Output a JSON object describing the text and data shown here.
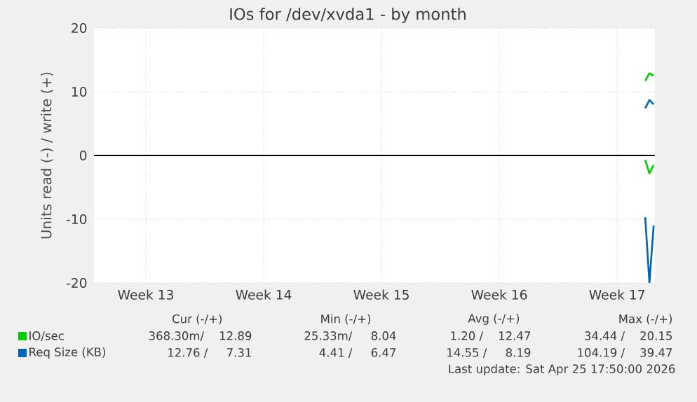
{
  "chart_data": {
    "type": "line",
    "title": "IOs for /dev/xvda1 - by month",
    "ylabel": "Units read (-) / write (+)",
    "xlim": [
      "2026-03-23T10:00",
      "2026-04-25T17:50"
    ],
    "xticks": [
      {
        "value": "2026-03-26T12:00",
        "label": "Week 13"
      },
      {
        "value": "2026-04-02T12:00",
        "label": "Week 14"
      },
      {
        "value": "2026-04-09T12:00",
        "label": "Week 15"
      },
      {
        "value": "2026-04-16T12:00",
        "label": "Week 16"
      },
      {
        "value": "2026-04-23T12:00",
        "label": "Week 17"
      }
    ],
    "ylim": [
      -20,
      20
    ],
    "yticks": [
      -20,
      -10,
      0,
      10,
      20
    ],
    "grid": true,
    "legend": "bottom left",
    "marker": "none",
    "line_style": "solid",
    "ref_lines": [
      {
        "axis": "y",
        "value": 0,
        "color": "#000000"
      }
    ],
    "series": [
      {
        "name": "IO/sec",
        "color": "#00cc00",
        "x": [
          "2026-04-25T04:00",
          "2026-04-25T10:00",
          "2026-04-25T16:00"
        ],
        "values": [
          11.7,
          12.9,
          12.5
        ]
      },
      {
        "color": "#00cc00",
        "x": [
          "2026-04-25T04:00",
          "2026-04-25T10:00",
          "2026-04-25T16:00"
        ],
        "values": [
          -0.7,
          -2.8,
          -1.5
        ]
      },
      {
        "name": "Req Size (KB)",
        "color": "#0066b3",
        "x": [
          "2026-04-25T04:00",
          "2026-04-25T10:00",
          "2026-04-25T16:00"
        ],
        "values": [
          7.4,
          8.7,
          8.0
        ]
      },
      {
        "color": "#0066b3",
        "x": [
          "2026-04-25T04:00",
          "2026-04-25T10:00",
          "2026-04-25T16:00"
        ],
        "values": [
          -9.7,
          -20,
          -11
        ]
      }
    ],
    "annotations": [
      "Cur (-/+)",
      "Min (-/+)",
      "Avg (-/+)",
      "Max (-/+)",
      "368.30m/    12.89",
      "25.33m/     8.04",
      "1.20 /    12.47",
      "34.44 /    20.15",
      "12.76 /     7.31",
      "4.41 /     6.47",
      "14.55 /     8.19",
      "104.19 /    39.47",
      "Last update: Sat Apr 25 17:50:00 2026"
    ]
  }
}
